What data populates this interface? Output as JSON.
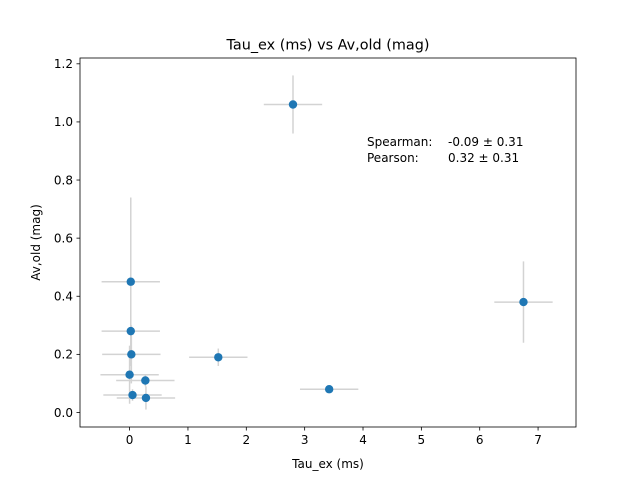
{
  "chart_data": {
    "type": "scatter",
    "title": "Tau_ex (ms) vs Av,old (mag)",
    "xlabel": "Tau_ex (ms)",
    "ylabel": "Av,old (mag)",
    "xlim": [
      -0.85,
      7.65
    ],
    "ylim": [
      -0.05,
      1.22
    ],
    "xticks": [
      0,
      1,
      2,
      3,
      4,
      5,
      6,
      7
    ],
    "yticks": [
      0.0,
      0.2,
      0.4,
      0.6,
      0.8,
      1.0,
      1.2
    ],
    "xtick_labels": [
      "0",
      "1",
      "2",
      "3",
      "4",
      "5",
      "6",
      "7"
    ],
    "ytick_labels": [
      "0.0",
      "0.2",
      "0.4",
      "0.6",
      "0.8",
      "1.0",
      "1.2"
    ],
    "grid": false,
    "marker_color": "#1f77b4",
    "errorbar_color": "#d3d3d3",
    "points": [
      {
        "x": 2.8,
        "y": 1.06,
        "xerr": 0.5,
        "yerr": 0.1
      },
      {
        "x": 0.02,
        "y": 0.45,
        "xerr": 0.5,
        "yerr": 0.29
      },
      {
        "x": 0.02,
        "y": 0.28,
        "xerr": 0.5,
        "yerr": 0.07
      },
      {
        "x": 0.03,
        "y": 0.2,
        "xerr": 0.5,
        "yerr": 0.1
      },
      {
        "x": 0.0,
        "y": 0.13,
        "xerr": 0.5,
        "yerr": 0.1
      },
      {
        "x": 0.27,
        "y": 0.11,
        "xerr": 0.5,
        "yerr": 0.02
      },
      {
        "x": 0.05,
        "y": 0.06,
        "xerr": 0.5,
        "yerr": 0.02
      },
      {
        "x": 0.28,
        "y": 0.05,
        "xerr": 0.5,
        "yerr": 0.04
      },
      {
        "x": 1.52,
        "y": 0.19,
        "xerr": 0.5,
        "yerr": 0.03
      },
      {
        "x": 3.42,
        "y": 0.08,
        "xerr": 0.5,
        "yerr": 0.01
      },
      {
        "x": 6.75,
        "y": 0.38,
        "xerr": 0.5,
        "yerr": 0.14
      }
    ],
    "annotations": [
      {
        "label": "Spearman:",
        "value": "-0.09 ± 0.31"
      },
      {
        "label": "Pearson:",
        "value": "0.32 ± 0.31"
      }
    ]
  }
}
